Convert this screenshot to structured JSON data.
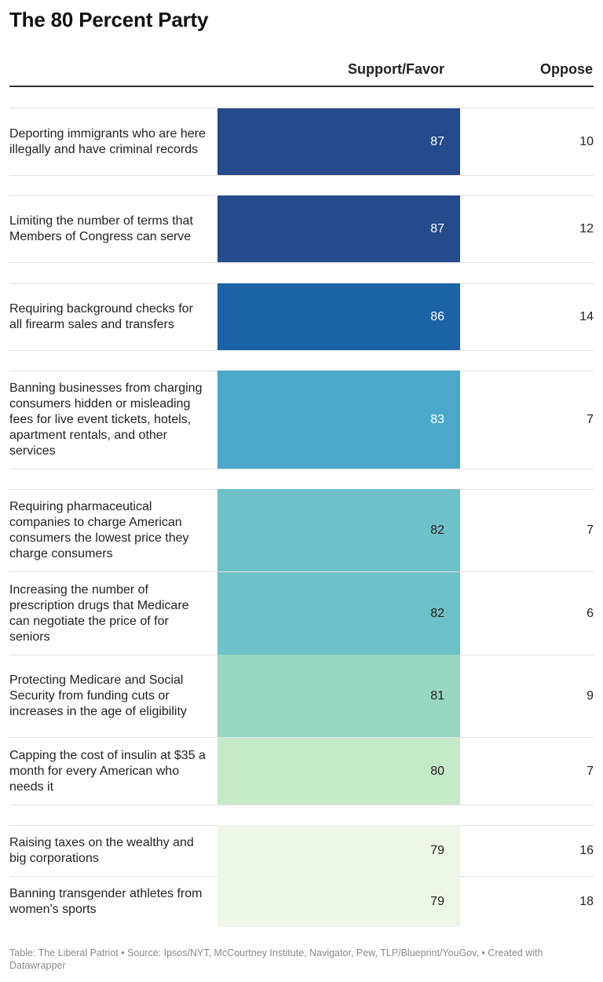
{
  "title": "The 80 Percent Party",
  "columns": {
    "support": "Support/Favor",
    "oppose": "Oppose"
  },
  "chart_data": {
    "type": "table",
    "title": "The 80 Percent Party",
    "columns": [
      "",
      "Support/Favor",
      "Oppose"
    ],
    "rows": [
      {
        "label": "Deporting immigrants who are here illegally and have criminal records",
        "support": 87,
        "oppose": 10,
        "color": "#264b8d",
        "text_color": "#ffffff"
      },
      {
        "label": "Limiting the number of terms that Members of Congress can serve",
        "support": 87,
        "oppose": 12,
        "color": "#264b8d",
        "text_color": "#ffffff"
      },
      {
        "label": "Requiring background checks for all firearm sales and transfers",
        "support": 86,
        "oppose": 14,
        "color": "#1b62a6",
        "text_color": "#ffffff"
      },
      {
        "label": "Banning businesses from charging consumers hidden or misleading fees for live event tickets, hotels, apartment rentals, and other services",
        "support": 83,
        "oppose": 7,
        "color": "#4ba8ca",
        "text_color": "#ffffff"
      },
      {
        "label": "Requiring pharmaceutical companies to charge American consumers the lowest price they charge consumers",
        "support": 82,
        "oppose": 7,
        "color": "#6ec1c6",
        "text_color": "#222222"
      },
      {
        "label": "Increasing the number of prescription drugs that Medicare can negotiate the price of for seniors",
        "support": 82,
        "oppose": 6,
        "color": "#6ec1c6",
        "text_color": "#222222"
      },
      {
        "label": "Protecting Medicare and Social Security from funding cuts or increases in the age of eligibility",
        "support": 81,
        "oppose": 9,
        "color": "#99d6c1",
        "text_color": "#222222"
      },
      {
        "label": "Capping the cost of insulin at $35 a month for every American who needs it",
        "support": 80,
        "oppose": 7,
        "color": "#c6e9c8",
        "text_color": "#222222"
      },
      {
        "label": "Raising taxes on the wealthy and big corporations",
        "support": 79,
        "oppose": 16,
        "color": "#eef7e6",
        "text_color": "#222222"
      },
      {
        "label": "Banning transgender athletes from women's sports",
        "support": 79,
        "oppose": 18,
        "color": "#eef7e6",
        "text_color": "#222222"
      }
    ]
  },
  "footer": "Table: The Liberal Patriot • Source: Ipsos/NYT, McCourtney Institute, Navigator, Pew, TLP/Blueprint/YouGov,  • Created with Datawrapper"
}
